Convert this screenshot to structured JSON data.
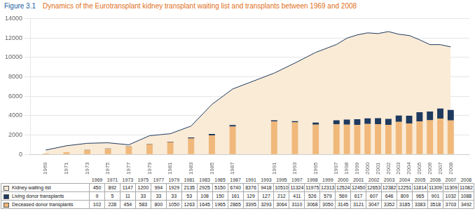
{
  "chart_data": {
    "type": "bar",
    "title": "Figure 3.1",
    "subtitle": "Dynamics of the Eurotransplant kidney transplant waiting list and transplants between 1969 and 2008",
    "x": [
      1969,
      1971,
      1973,
      1975,
      1977,
      1979,
      1981,
      1983,
      1985,
      1987,
      1991,
      1993,
      1995,
      1997,
      1998,
      1999,
      2000,
      2001,
      2002,
      2003,
      2004,
      2005,
      2006,
      2007,
      2008
    ],
    "series": [
      {
        "name": "Kidney waiting list",
        "type": "area",
        "color": "#faebd7",
        "values": [
          450,
          892,
          1147,
          1200,
          994,
          1929,
          2135,
          2925,
          5150,
          6740,
          8376,
          9418,
          10510,
          11324,
          11975,
          12313,
          12524,
          12450,
          12653,
          12382,
          12251,
          11814,
          11309,
          11309,
          11082
        ]
      },
      {
        "name": "Living donor transplants",
        "type": "bar",
        "color": "#1e3a5f",
        "values": [
          9,
          5,
          11,
          33,
          33,
          33,
          53,
          108,
          150,
          161,
          129,
          127,
          212,
          411,
          526,
          579,
          569,
          617,
          607,
          646,
          809,
          965,
          901,
          1032,
          1088
        ]
      },
      {
        "name": "Deceased donor transplants",
        "type": "bar",
        "color": "#f0b87a",
        "values": [
          102,
          228,
          454,
          583,
          800,
          1050,
          1263,
          1645,
          1965,
          2865,
          3395,
          3293,
          3064,
          3110,
          3068,
          3050,
          3145,
          3121,
          3047,
          3352,
          3185,
          3383,
          3518,
          3703,
          3492
        ]
      }
    ],
    "stacked": true,
    "grid": true,
    "xlim": [
      1967.5,
      2009.8
    ],
    "xticks": [
      1969,
      1971,
      1973,
      1975,
      1977,
      1979,
      1981,
      1983,
      1985,
      1987,
      1991,
      1993,
      1995,
      1997,
      1998,
      1999,
      2000,
      2001,
      2002,
      2003,
      2004,
      2005,
      2006,
      2007,
      2008
    ],
    "ylim": [
      0,
      14000
    ],
    "yticks": [
      0,
      2000,
      4000,
      6000,
      8000,
      10000,
      12000,
      14000
    ]
  }
}
